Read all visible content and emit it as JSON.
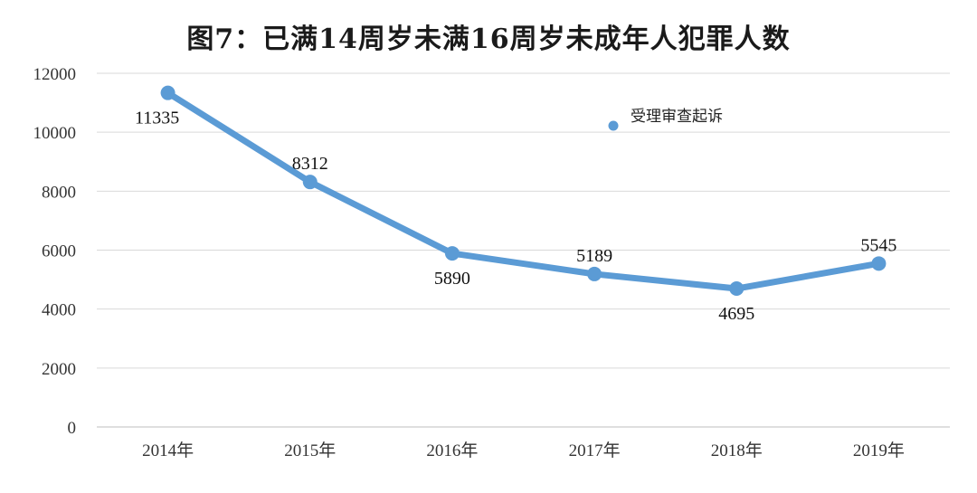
{
  "chart_data": {
    "type": "line",
    "title": "图7：已满14周岁未满16周岁未成年人犯罪人数",
    "categories": [
      "2014年",
      "2015年",
      "2016年",
      "2017年",
      "2018年",
      "2019年"
    ],
    "series": [
      {
        "name": "受理审查起诉",
        "values": [
          11335,
          8312,
          5890,
          5189,
          4695,
          5545
        ],
        "color": "#5b9bd5"
      }
    ],
    "ylim": [
      0,
      12000
    ],
    "yticks": [
      0,
      2000,
      4000,
      6000,
      8000,
      10000,
      12000
    ],
    "grid": true,
    "legend": "top-right",
    "data_labels": true
  }
}
